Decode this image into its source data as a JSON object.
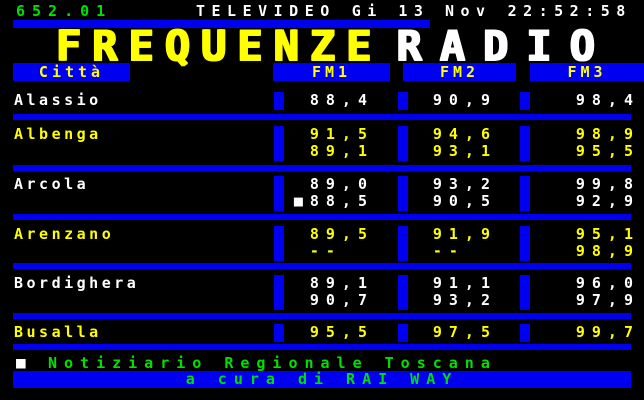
{
  "palette": {
    "blue": "#0000f0",
    "yellow": "#ffff00",
    "white": "#ffffff",
    "green": "#00e000",
    "black": "#000000"
  },
  "header": {
    "page": "652.01",
    "channel": "TELEVIDEO",
    "date": "Gi 13 Nov",
    "time": "22:52:58"
  },
  "title": {
    "left": "FREQUENZE",
    "right": "RADIO"
  },
  "table": {
    "columns": [
      "Città",
      "FM1",
      "FM2",
      "FM3"
    ],
    "rows": [
      {
        "city": "Alassio",
        "color": "white",
        "lines": [
          [
            "88,4",
            "90,9",
            "98,4"
          ]
        ]
      },
      {
        "city": "Albenga",
        "color": "yellow",
        "lines": [
          [
            "91,5",
            "94,6",
            "98,9"
          ],
          [
            "89,1",
            "93,1",
            "95,5"
          ]
        ]
      },
      {
        "city": "Arcola",
        "color": "white",
        "lines": [
          [
            "89,0",
            "93,2",
            "99,8"
          ],
          [
            "■88,5",
            "90,5",
            "92,9"
          ]
        ]
      },
      {
        "city": "Arenzano",
        "color": "yellow",
        "lines": [
          [
            "89,5",
            "91,9",
            "95,1"
          ],
          [
            "--  ",
            "--  ",
            "98,9"
          ]
        ]
      },
      {
        "city": "Bordighera",
        "color": "white",
        "lines": [
          [
            "89,1",
            "91,1",
            "96,0"
          ],
          [
            "90,7",
            "93,2",
            "97,9"
          ]
        ]
      },
      {
        "city": "Busalla",
        "color": "yellow",
        "lines": [
          [
            "95,5",
            "97,5",
            "99,7"
          ]
        ]
      }
    ]
  },
  "footer": {
    "marker": "■",
    "note": "Notiziario Regionale Toscana",
    "credit": "a cura di RAI WAY"
  }
}
